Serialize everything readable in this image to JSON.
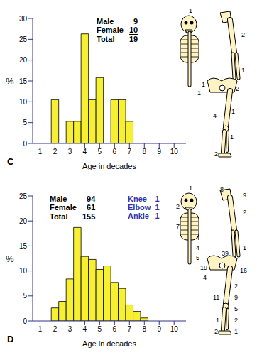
{
  "chart_data": [
    {
      "type": "histogram",
      "panel_label": "C",
      "x_label": "Age in decades",
      "y_label": "%",
      "bins": [
        1.75,
        2.25,
        2.75,
        3.25,
        3.75,
        4.25,
        4.75,
        5.25,
        5.75,
        6.25,
        6.75,
        7.25
      ],
      "values": [
        10.5,
        0,
        5.3,
        5.3,
        26.3,
        10.5,
        15.8,
        0,
        10.5,
        10.5,
        5.3
      ],
      "color": "#f7f032",
      "xlim": [
        0.5,
        10.8
      ],
      "xticks": [
        1,
        2,
        3,
        4,
        5,
        6,
        7,
        8,
        9,
        10
      ],
      "ylim": [
        0,
        30
      ],
      "yticks": [
        0,
        5,
        10,
        15,
        20,
        25,
        30
      ],
      "grid": false,
      "counts": [
        {
          "label": "Male",
          "value": 9
        },
        {
          "label": "Female",
          "value": 10
        },
        {
          "label": "Total",
          "value": 19
        }
      ],
      "skeleton_counts": [
        1,
        2,
        1,
        1,
        1,
        2,
        4,
        1,
        1,
        2
      ]
    },
    {
      "type": "histogram",
      "panel_label": "D",
      "x_label": "Age in decades",
      "y_label": "%",
      "bins": [
        1.75,
        2.25,
        2.75,
        3.25,
        3.75,
        4.25,
        4.75,
        5.25,
        5.75,
        6.25,
        6.75,
        7.25,
        7.75,
        8.25
      ],
      "values": [
        2.6,
        3.9,
        8.4,
        18.7,
        12.9,
        12.3,
        10.3,
        11.0,
        7.7,
        6.5,
        3.2,
        1.9,
        0.6
      ],
      "color": "#f7f032",
      "xlim": [
        0.5,
        10.8
      ],
      "xticks": [
        1,
        2,
        3,
        4,
        5,
        6,
        7,
        8,
        9,
        10
      ],
      "ylim": [
        0,
        25
      ],
      "yticks": [
        0,
        5,
        10,
        15,
        20,
        25
      ],
      "grid": false,
      "counts": [
        {
          "label": "Male",
          "value": 94
        },
        {
          "label": "Female",
          "value": 61
        },
        {
          "label": "Total",
          "value": 155
        }
      ],
      "sites": [
        {
          "label": "Knee",
          "value": 1
        },
        {
          "label": "Elbow",
          "value": 1
        },
        {
          "label": "Ankle",
          "value": 1
        }
      ],
      "skeleton_counts": [
        1,
        2,
        7,
        4,
        4,
        5,
        8,
        9,
        2,
        1,
        39,
        19,
        4,
        16,
        2,
        11,
        9,
        5,
        1,
        2,
        2,
        1
      ]
    }
  ]
}
